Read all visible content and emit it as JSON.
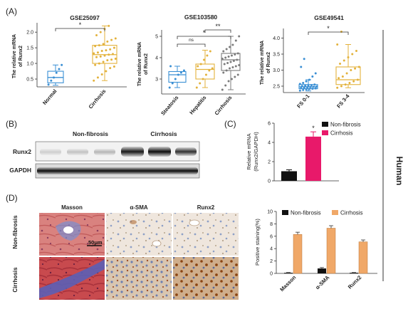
{
  "panels": {
    "a": "(A)",
    "b": "(B)",
    "c": "(C)",
    "d": "(D)"
  },
  "side_label": "Human",
  "panel_a": {
    "y_label_line1": "The relative mRNA",
    "y_label_line2": "of Runx2",
    "significance": {
      "star": "*",
      "double_star": "**",
      "ns": "ns"
    }
  },
  "panel_b": {
    "group_labels": [
      "Non-fibrosis",
      "Cirrhosis"
    ],
    "row_labels": [
      "Runx2",
      "GAPDH"
    ]
  },
  "panel_d": {
    "column_labels": [
      "Masson",
      "α-SMA",
      "Runx2"
    ],
    "row_labels": [
      "Non-fibrosis",
      "Cirrhosis"
    ],
    "scale_bar": "50μm"
  },
  "colors": {
    "blue": "#3a8fd4",
    "gold": "#e3b23c",
    "gray": "#7c7c7c",
    "black": "#111111",
    "magenta": "#e8196a",
    "tan": "#f0a868"
  },
  "chart_data": [
    {
      "id": "a1",
      "type": "scatter",
      "title": "GSE25097",
      "ylabel": "The relative mRNA of Runx2",
      "categories": [
        "Normal",
        "Cirrhosis"
      ],
      "yticks": [
        "0.5",
        "1.0",
        "1.5",
        "2.0"
      ],
      "ylim": [
        0.25,
        2.3
      ],
      "boxes": [
        {
          "category": "Normal",
          "q1": 0.38,
          "median": 0.55,
          "q3": 0.75,
          "whisker_low": 0.3,
          "whisker_high": 0.95
        },
        {
          "category": "Cirrhosis",
          "q1": 1.0,
          "median": 1.28,
          "q3": 1.58,
          "whisker_low": 0.45,
          "whisker_high": 2.2
        }
      ],
      "points": [
        {
          "category": "Normal",
          "values": [
            0.32,
            0.45,
            0.55,
            0.7,
            0.82,
            0.95
          ]
        },
        {
          "category": "Cirrhosis",
          "values": [
            0.45,
            0.55,
            0.65,
            0.75,
            0.85,
            0.9,
            0.95,
            1.0,
            1.05,
            1.1,
            1.12,
            1.15,
            1.2,
            1.22,
            1.25,
            1.28,
            1.3,
            1.32,
            1.35,
            1.4,
            1.42,
            1.45,
            1.5,
            1.55,
            1.58,
            1.62,
            1.7,
            1.75,
            1.8,
            1.9,
            2.0,
            2.1,
            2.2
          ]
        }
      ],
      "comparisons": [
        {
          "from": "Normal",
          "to": "Cirrhosis",
          "label": "*"
        }
      ]
    },
    {
      "id": "a2",
      "type": "scatter",
      "title": "GSE103580",
      "ylabel": "The relative mRNA of Runx2",
      "categories": [
        "Steatosis",
        "Hepatitis",
        "Cirrhosis"
      ],
      "yticks": [
        "3",
        "4",
        "5"
      ],
      "ylim": [
        2.3,
        5.3
      ],
      "boxes": [
        {
          "category": "Steatosis",
          "q1": 2.85,
          "median": 3.2,
          "q3": 3.35,
          "whisker_low": 2.6,
          "whisker_high": 3.6
        },
        {
          "category": "Hepatitis",
          "q1": 3.0,
          "median": 3.45,
          "q3": 3.7,
          "whisker_low": 2.6,
          "whisker_high": 4.35
        },
        {
          "category": "Cirrhosis",
          "q1": 3.4,
          "median": 3.9,
          "q3": 4.2,
          "whisker_low": 2.5,
          "whisker_high": 5.0
        }
      ],
      "points": [
        {
          "category": "Steatosis",
          "values": [
            2.6,
            2.8,
            3.0,
            3.2,
            3.3,
            3.4,
            3.6
          ]
        },
        {
          "category": "Hepatitis",
          "values": [
            2.6,
            2.8,
            3.0,
            3.2,
            3.4,
            3.5,
            3.6,
            3.7,
            3.9,
            4.1,
            4.3
          ]
        },
        {
          "category": "Cirrhosis",
          "values": [
            2.5,
            2.7,
            2.9,
            3.0,
            3.1,
            3.2,
            3.3,
            3.4,
            3.5,
            3.55,
            3.6,
            3.65,
            3.7,
            3.75,
            3.8,
            3.85,
            3.9,
            3.95,
            4.0,
            4.05,
            4.1,
            4.15,
            4.2,
            4.3,
            4.4,
            4.5,
            4.6,
            4.8,
            5.0
          ]
        }
      ],
      "comparisons": [
        {
          "from": "Steatosis",
          "to": "Hepatitis",
          "label": "ns"
        },
        {
          "from": "Steatosis",
          "to": "Cirrhosis",
          "label": "*"
        },
        {
          "from": "Hepatitis",
          "to": "Cirrhosis",
          "label": "**"
        }
      ]
    },
    {
      "id": "a3",
      "type": "scatter",
      "title": "GSE49541",
      "ylabel": "The relative mRNA of Runx2",
      "categories": [
        "FS 0-1",
        "FS 3-4"
      ],
      "yticks": [
        "2.5",
        "3.0",
        "3.5",
        "4.0"
      ],
      "ylim": [
        2.3,
        4.3
      ],
      "boxes": [
        {
          "category": "FS 0-1",
          "q1": 2.42,
          "median": 2.48,
          "q3": 2.55,
          "whisker_low": 2.35,
          "whisker_high": 2.7
        },
        {
          "category": "FS 3-4",
          "q1": 2.55,
          "median": 2.7,
          "q3": 3.1,
          "whisker_low": 2.45,
          "whisker_high": 3.8
        }
      ],
      "points": [
        {
          "category": "FS 0-1",
          "values": [
            2.36,
            2.38,
            2.4,
            2.41,
            2.42,
            2.43,
            2.44,
            2.45,
            2.46,
            2.47,
            2.48,
            2.49,
            2.5,
            2.51,
            2.52,
            2.53,
            2.55,
            2.57,
            2.6,
            2.65,
            2.7,
            2.8,
            2.9,
            3.1,
            3.35
          ]
        },
        {
          "category": "FS 3-4",
          "values": [
            2.45,
            2.5,
            2.55,
            2.6,
            2.65,
            2.7,
            2.75,
            2.8,
            2.9,
            3.0,
            3.05,
            3.1,
            3.2,
            3.3,
            3.4,
            3.5,
            3.6,
            3.8,
            4.2
          ]
        }
      ],
      "comparisons": [
        {
          "from": "FS 0-1",
          "to": "FS 3-4",
          "label": "*"
        }
      ]
    },
    {
      "id": "c",
      "type": "bar",
      "ylabel_line1": "Relative mRNA",
      "ylabel_line2": "(Runx2/GAPDH)",
      "yticks": [
        "0",
        "2",
        "4",
        "6"
      ],
      "ylim": [
        0,
        6
      ],
      "legend": "top-right",
      "series": [
        {
          "name": "Non-fibrosis",
          "values": [
            1.0
          ],
          "error": [
            0.15
          ]
        },
        {
          "name": "Cirrhosis",
          "values": [
            4.6
          ],
          "error": [
            0.5
          ]
        }
      ],
      "annotations": [
        "*"
      ]
    },
    {
      "id": "d",
      "type": "bar",
      "ylabel": "Positive staining(%)",
      "categories": [
        "Masson",
        "α-SMA",
        "Runx2"
      ],
      "yticks": [
        "0",
        "2",
        "4",
        "6",
        "8",
        "10"
      ],
      "ylim": [
        0,
        10
      ],
      "legend": "top",
      "series": [
        {
          "name": "Non-fibrosis",
          "values": [
            0.1,
            0.8,
            0.1
          ],
          "error": [
            0.05,
            0.15,
            0.05
          ]
        },
        {
          "name": "Cirrhosis",
          "values": [
            6.3,
            7.3,
            5.1
          ],
          "error": [
            0.35,
            0.4,
            0.3
          ]
        }
      ]
    }
  ]
}
